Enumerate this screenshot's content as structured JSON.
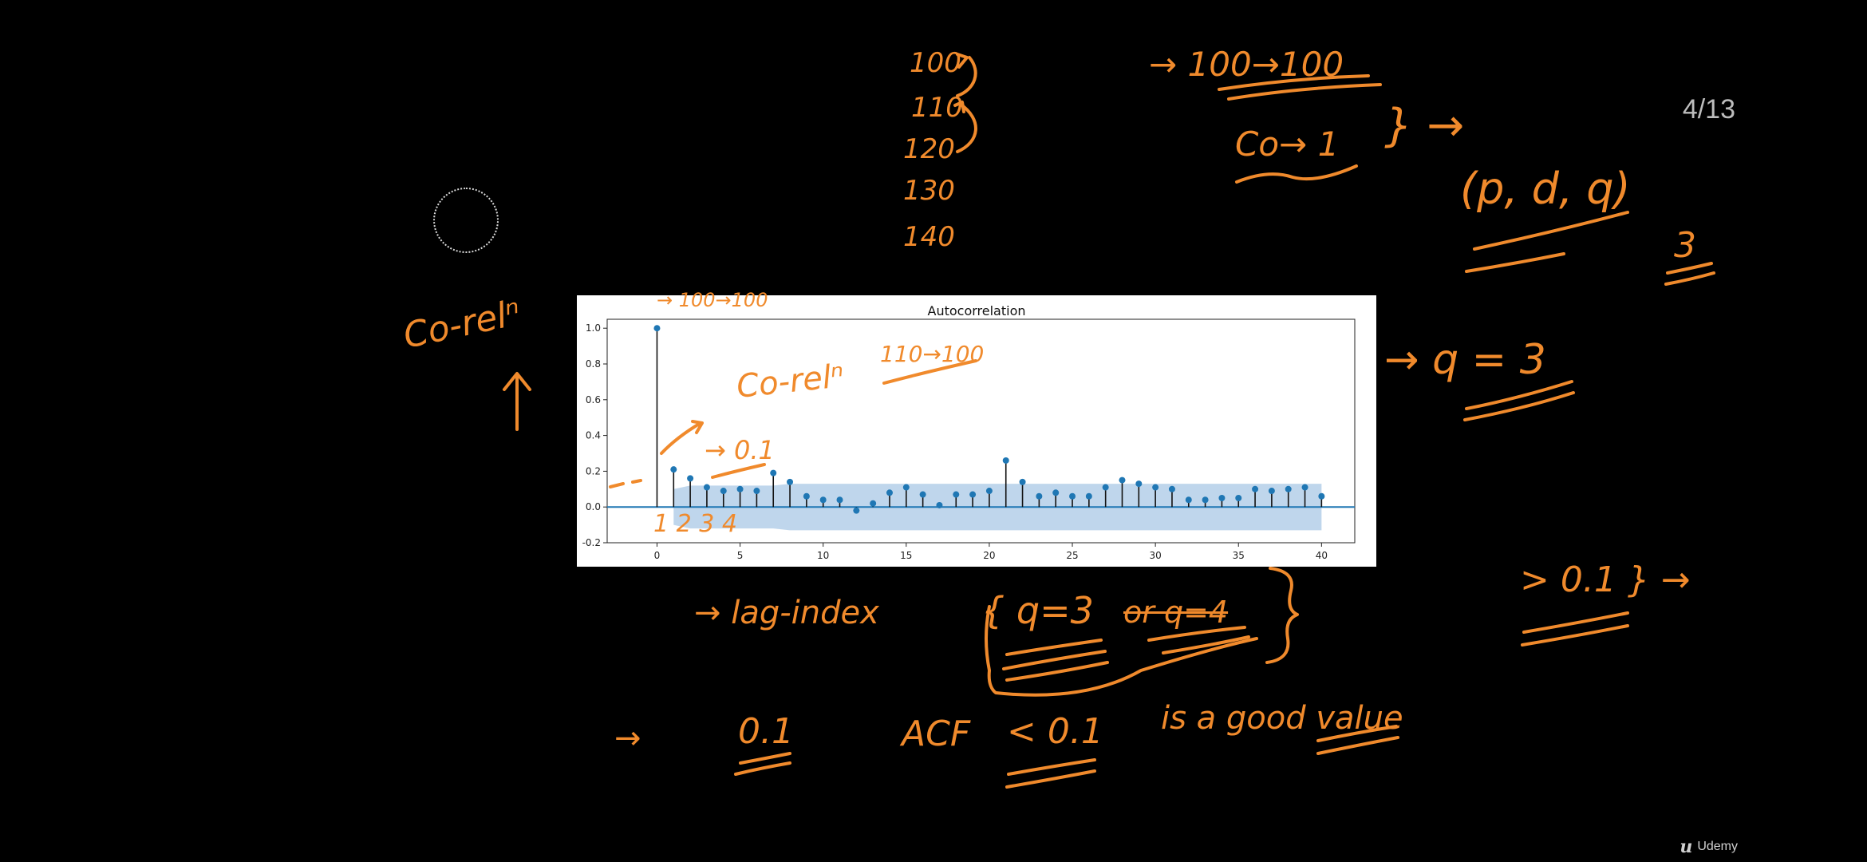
{
  "slide": {
    "counter": "4/13",
    "brand": "Udemy",
    "brand_logo": "u"
  },
  "notes": {
    "list": [
      "100",
      "110",
      "120",
      "130",
      "140"
    ],
    "top_mapping": "→ 100→100",
    "corr_one": "Co→ 1",
    "brace_arrow": "} →",
    "pdq": "(p, d, q)",
    "pdq_result": "3",
    "left_label": "Co-relⁿ",
    "q_eq": "→ q = 3",
    "inside_arrow": "→ 100→100",
    "inside_corr": "Co-relⁿ",
    "inside_map": "110→100",
    "inside_threshold": "→ 0.1",
    "lags": "1 2 3 4",
    "lag_index": "→  lag-index",
    "lag_q": "{ q=3",
    "lag_q_struck": "or q=4",
    "right_gt": "> 0.1 } →",
    "bottom_arrow": "→",
    "bottom_val": "0.1",
    "acf_label": "ACF",
    "acf_cond": "< 0.1",
    "good": "is a good value"
  },
  "chart_data": {
    "type": "stem",
    "title": "Autocorrelation",
    "xlabel": "",
    "ylabel": "",
    "x": [
      0,
      1,
      2,
      3,
      4,
      5,
      6,
      7,
      8,
      9,
      10,
      11,
      12,
      13,
      14,
      15,
      16,
      17,
      18,
      19,
      20,
      21,
      22,
      23,
      24,
      25,
      26,
      27,
      28,
      29,
      30,
      31,
      32,
      33,
      34,
      35,
      36,
      37,
      38,
      39,
      40
    ],
    "values": [
      1.0,
      0.21,
      0.16,
      0.11,
      0.09,
      0.1,
      0.09,
      0.19,
      0.14,
      0.06,
      0.04,
      0.04,
      -0.02,
      0.02,
      0.08,
      0.11,
      0.07,
      0.01,
      0.07,
      0.07,
      0.09,
      0.26,
      0.14,
      0.06,
      0.08,
      0.06,
      0.06,
      0.11,
      0.15,
      0.13,
      0.11,
      0.1,
      0.04,
      0.04,
      0.05,
      0.05,
      0.1,
      0.09,
      0.1,
      0.11,
      0.06
    ],
    "confidence_band": {
      "x": [
        1,
        2,
        3,
        4,
        5,
        6,
        7,
        8,
        9,
        10,
        15,
        20,
        25,
        30,
        35,
        40
      ],
      "upper": [
        0.1,
        0.12,
        0.12,
        0.12,
        0.12,
        0.12,
        0.12,
        0.13,
        0.13,
        0.13,
        0.13,
        0.13,
        0.13,
        0.13,
        0.13,
        0.13
      ],
      "lower": [
        -0.1,
        -0.12,
        -0.12,
        -0.12,
        -0.12,
        -0.12,
        -0.12,
        -0.13,
        -0.13,
        -0.13,
        -0.13,
        -0.13,
        -0.13,
        -0.13,
        -0.13,
        -0.13
      ]
    },
    "xlim": [
      -3,
      42
    ],
    "ylim": [
      -0.2,
      1.05
    ],
    "xticks": [
      0,
      5,
      10,
      15,
      20,
      25,
      30,
      35,
      40
    ],
    "yticks": [
      -0.2,
      0.0,
      0.2,
      0.4,
      0.6,
      0.8,
      1.0
    ],
    "grid": false,
    "legend": "none",
    "colors": {
      "stem": "#111111",
      "marker": "#1f77b4",
      "band": "#aac8e6",
      "zero_line": "#1f77b4"
    }
  }
}
